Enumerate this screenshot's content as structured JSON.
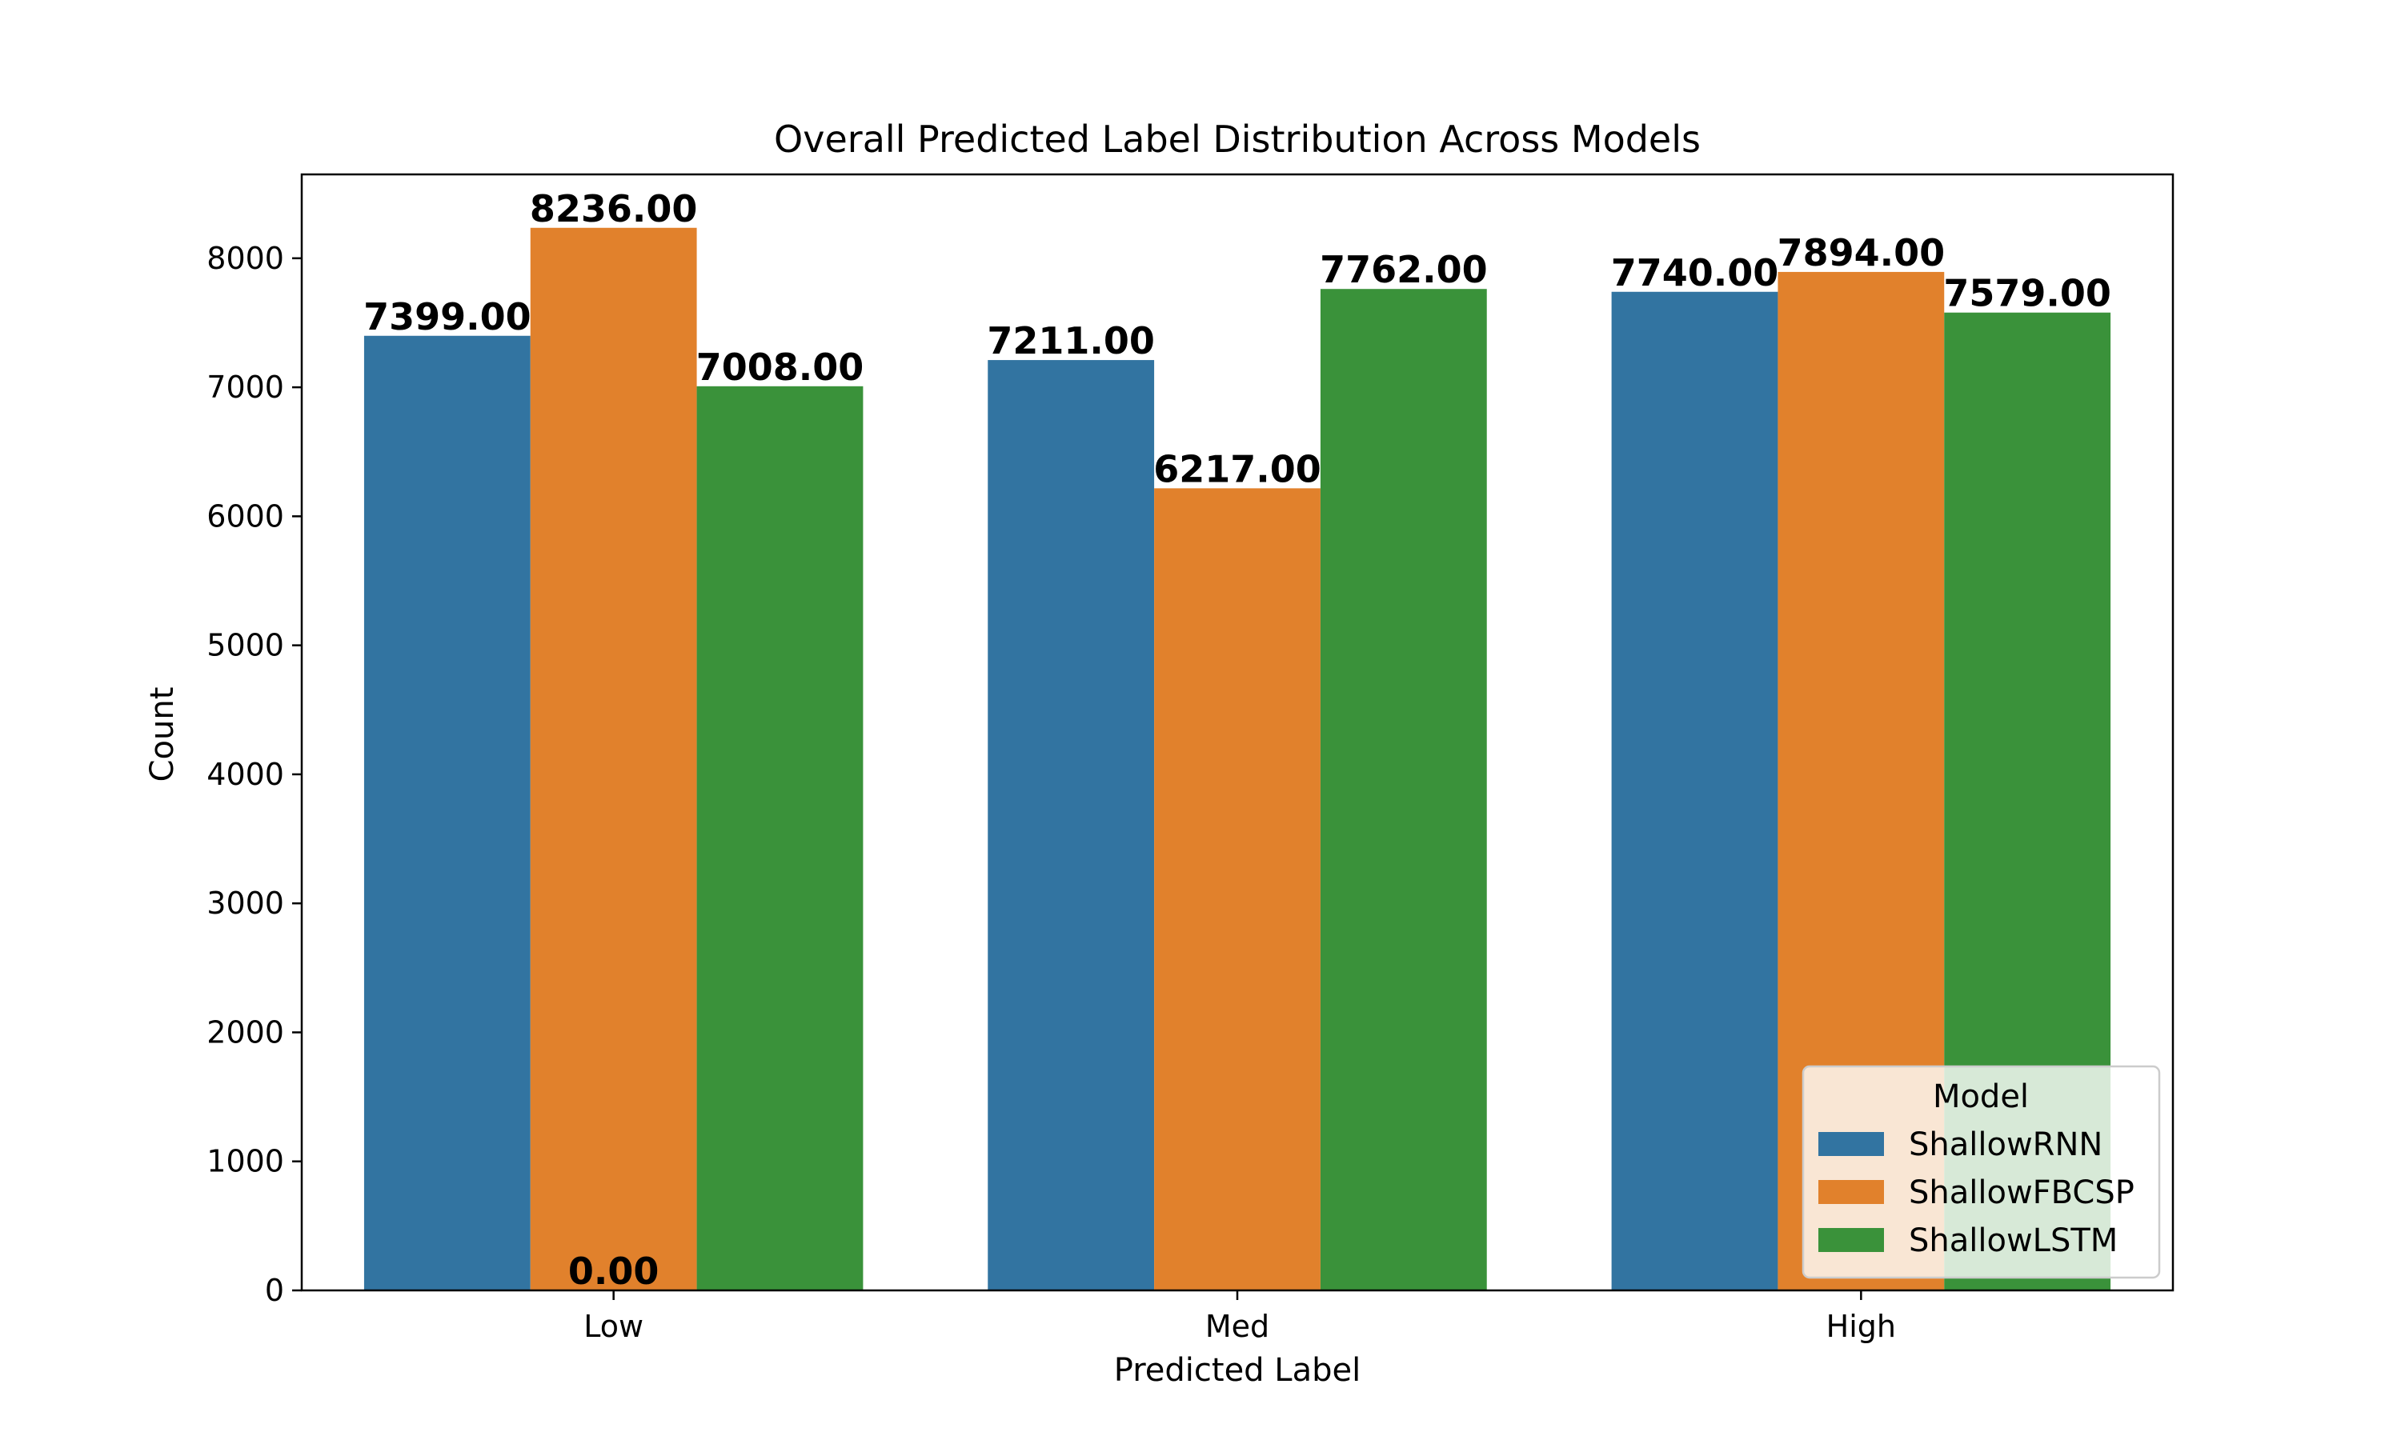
{
  "chart_data": {
    "type": "bar",
    "title": "Overall Predicted Label Distribution Across Models",
    "xlabel": "Predicted Label",
    "ylabel": "Count",
    "categories": [
      "Low",
      "Med",
      "High"
    ],
    "series": [
      {
        "name": "ShallowRNN",
        "values": [
          7399,
          7211,
          7740
        ],
        "labels": [
          "7399.00",
          "7211.00",
          "7740.00"
        ],
        "color": "#3274a1"
      },
      {
        "name": "ShallowFBCSP",
        "values": [
          8236,
          6217,
          7894
        ],
        "labels": [
          "8236.00",
          "6217.00",
          "7894.00"
        ],
        "color": "#e1812c"
      },
      {
        "name": "ShallowLSTM",
        "values": [
          7008,
          7762,
          7579
        ],
        "labels": [
          "7008.00",
          "7762.00",
          "7579.00"
        ],
        "color": "#3a923a"
      }
    ],
    "extra_labels": [
      {
        "category": "Low",
        "text": "0.00",
        "value": 0
      }
    ],
    "ylim": [
      0,
      8650
    ],
    "yticks": [
      0,
      1000,
      2000,
      3000,
      4000,
      5000,
      6000,
      7000,
      8000
    ],
    "ytick_labels": [
      "0",
      "1000",
      "2000",
      "3000",
      "4000",
      "5000",
      "6000",
      "7000",
      "8000"
    ],
    "grid": false,
    "legend": {
      "title": "Model",
      "placement": "lower-right"
    }
  }
}
